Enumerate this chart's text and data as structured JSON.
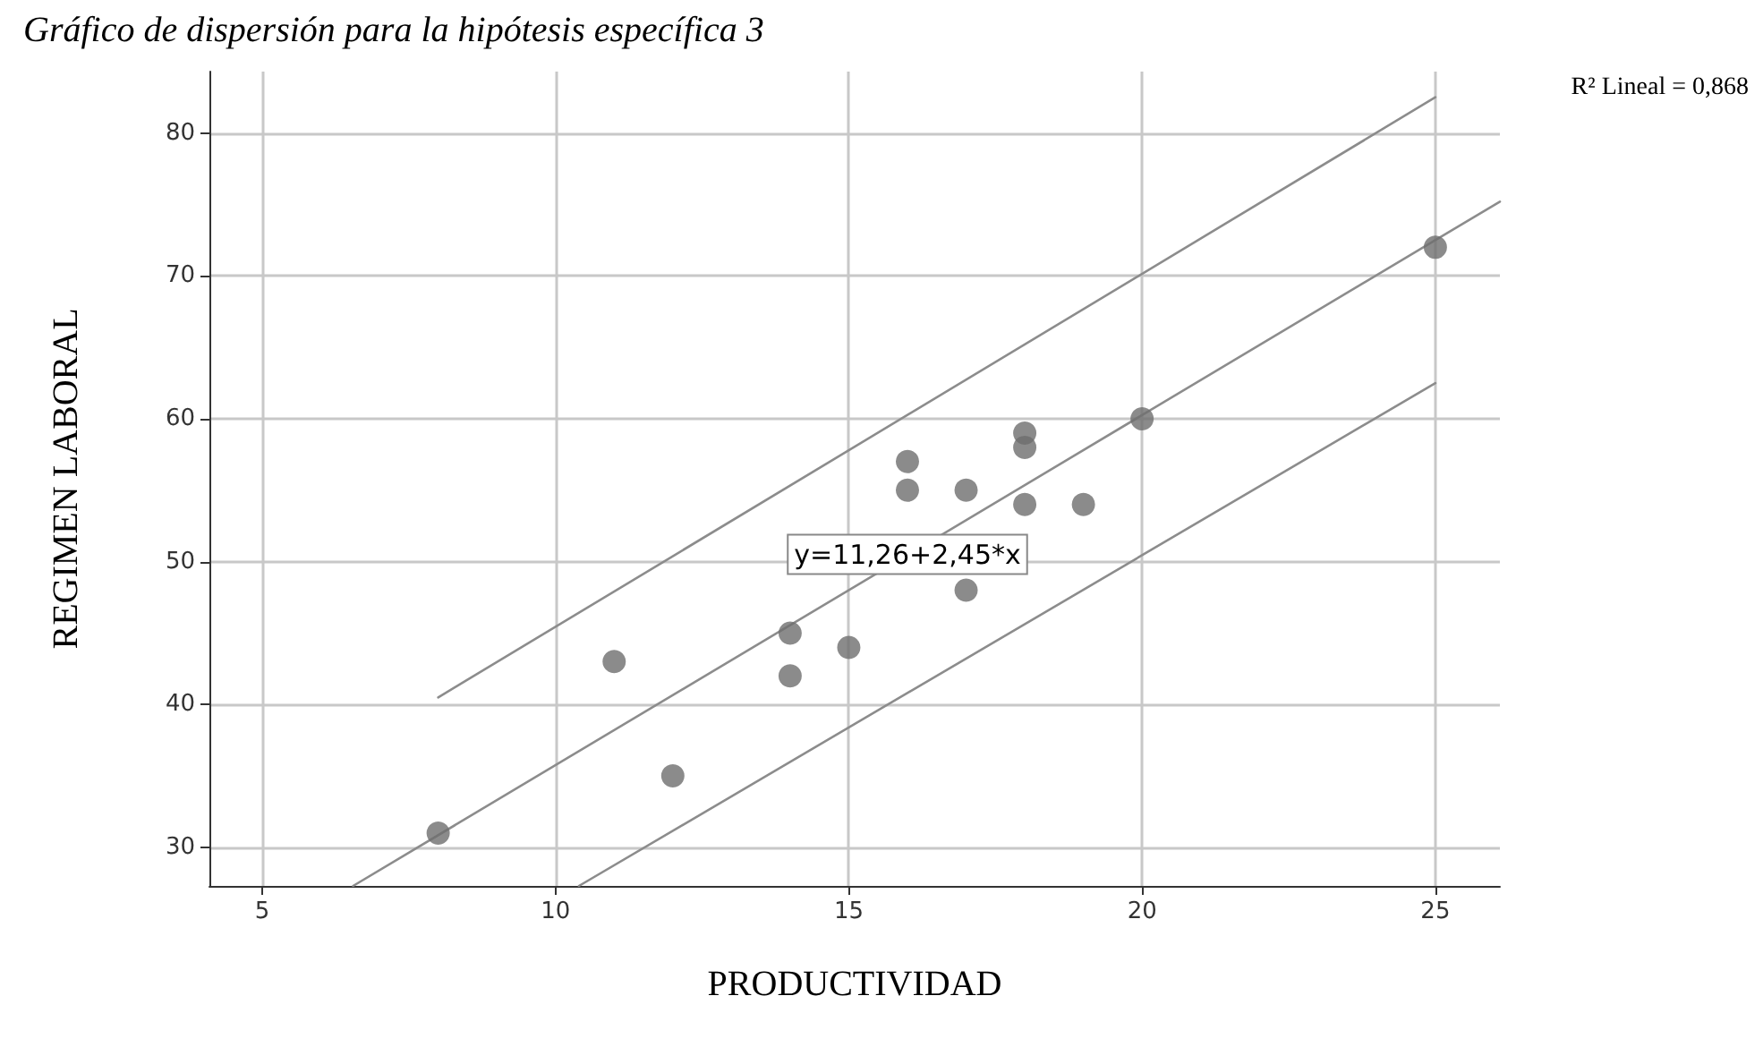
{
  "chart_data": {
    "type": "scatter",
    "title": "Gráfico de dispersión para la hipótesis específica 3",
    "xlabel": "PRODUCTIVIDAD",
    "ylabel": "REGIMEN LABORAL",
    "xlim": [
      4.1,
      26.1
    ],
    "xticks": [
      5,
      10,
      15,
      20,
      25
    ],
    "ylim": [
      27.3,
      84.3
    ],
    "yticks": [
      30,
      40,
      50,
      60,
      70,
      80
    ],
    "grid": true,
    "marker": "circle",
    "series": [
      {
        "color": "#6e6e6e",
        "x": [
          8,
          11,
          12,
          14,
          14,
          15,
          16,
          16,
          17,
          17,
          18,
          18,
          18,
          19,
          20,
          25
        ],
        "values": [
          31,
          43,
          35,
          45,
          42,
          44,
          57,
          55,
          55,
          48,
          59,
          58,
          54,
          54,
          60,
          72
        ]
      },
      {
        "type": "line",
        "color": "#8c8c8c",
        "line_style": "solid",
        "marker": "none",
        "x": [
          6.55,
          26.1
        ],
        "values": [
          27.3,
          75.2
        ]
      },
      {
        "type": "line",
        "color": "#8c8c8c",
        "line_style": "solid",
        "marker": "none",
        "x": [
          8,
          25
        ],
        "values": [
          40.5,
          82.5
        ]
      },
      {
        "type": "line",
        "color": "#8c8c8c",
        "line_style": "solid",
        "marker": "none",
        "x": [
          10.4,
          25
        ],
        "values": [
          27.3,
          62.5
        ]
      }
    ],
    "annotations": [
      {
        "text": "y=11,26+2,45*x",
        "x": 16,
        "y": 50.5
      },
      "R² Lineal = 0,868"
    ]
  }
}
